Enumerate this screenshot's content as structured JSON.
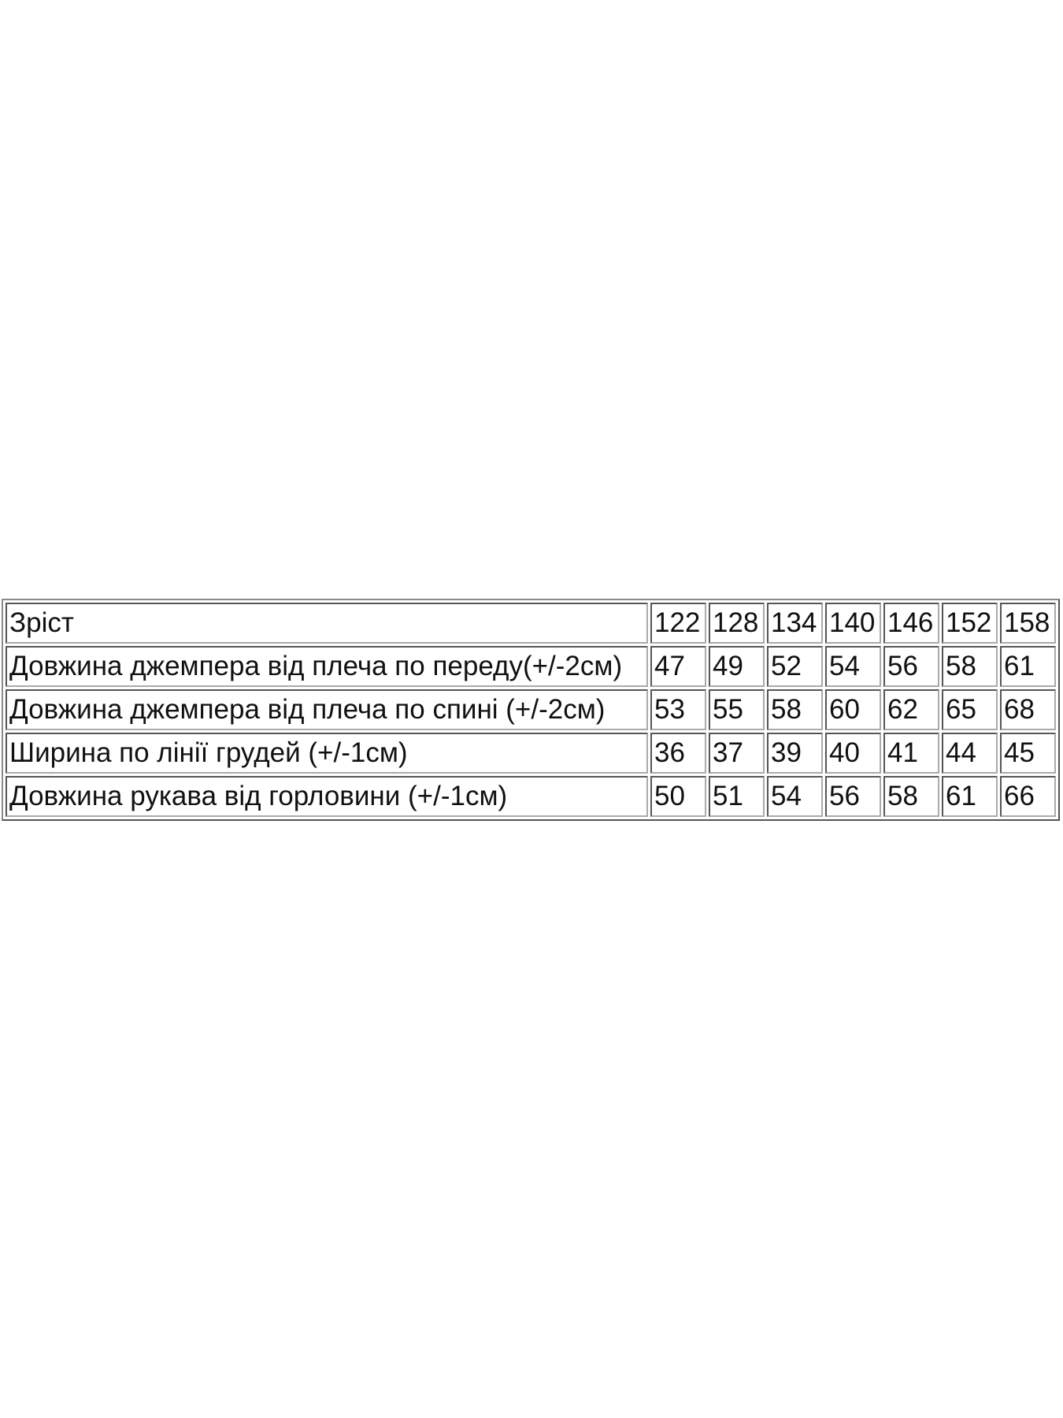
{
  "size_table": {
    "header": {
      "label": "Зріст",
      "sizes": [
        "122",
        "128",
        "134",
        "140",
        "146",
        "152",
        "158"
      ]
    },
    "rows": [
      {
        "label": "Довжина джемпера від плеча по переду(+/-2см)",
        "values": [
          "47",
          "49",
          "52",
          "54",
          "56",
          "58",
          "61"
        ]
      },
      {
        "label": "Довжина джемпера від плеча по спині (+/-2см)",
        "values": [
          "53",
          "55",
          "58",
          "60",
          "62",
          "65",
          "68"
        ]
      },
      {
        "label": "Ширина по лінії грудей (+/-1см)",
        "values": [
          "36",
          "37",
          "39",
          "40",
          "41",
          "44",
          "45"
        ]
      },
      {
        "label": "Довжина рукава від горловини (+/-1см)",
        "values": [
          "50",
          "51",
          "54",
          "56",
          "58",
          "61",
          "66"
        ]
      }
    ]
  }
}
